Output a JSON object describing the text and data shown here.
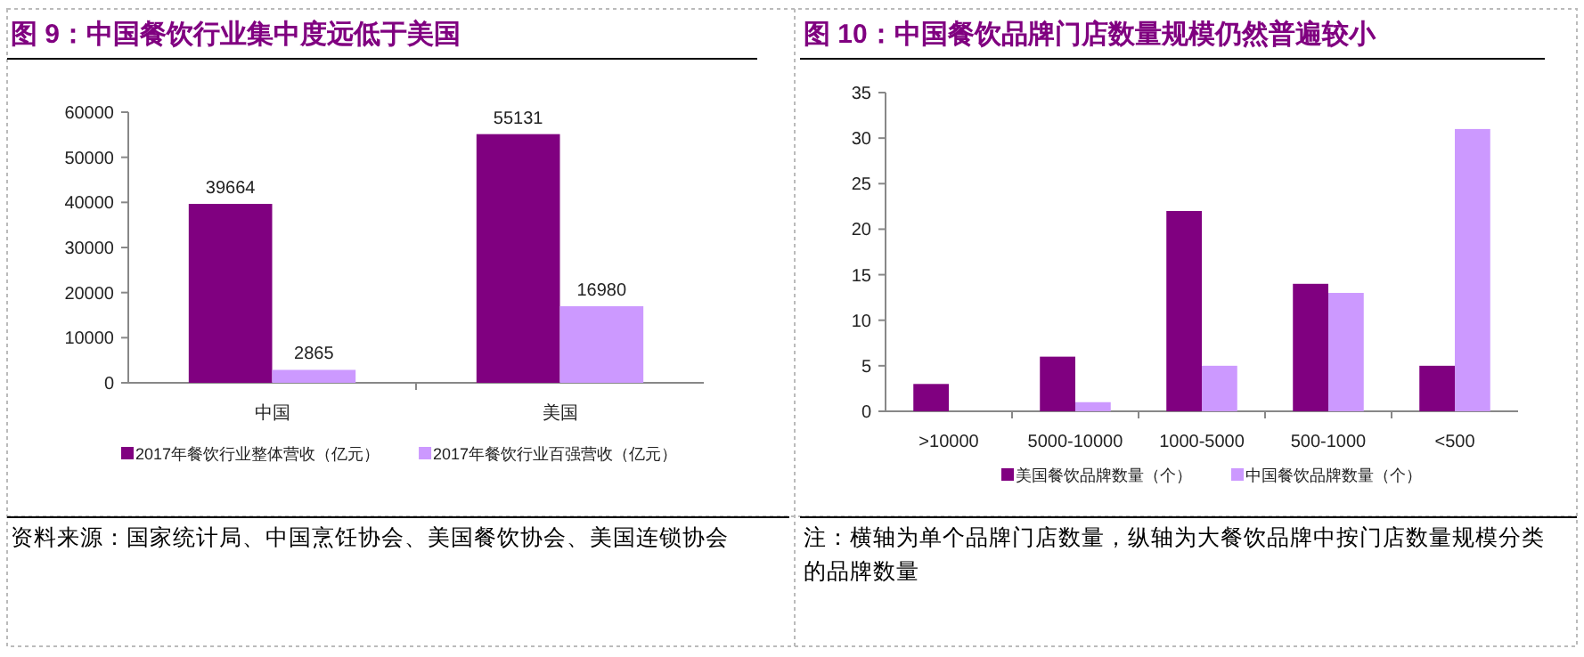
{
  "chart_data": [
    {
      "type": "bar",
      "title": "图 9：中国餐饮行业集中度远低于美国",
      "categories": [
        "中国",
        "美国"
      ],
      "series": [
        {
          "name": "2017年餐饮行业整体营收（亿元）",
          "color": "#800080",
          "values": [
            39664,
            55131
          ]
        },
        {
          "name": "2017年餐饮行业百强营收（亿元）",
          "color": "#cc99ff",
          "values": [
            2865,
            16980
          ]
        }
      ],
      "ylim": [
        0,
        60000
      ],
      "yticks": [
        0,
        10000,
        20000,
        30000,
        40000,
        50000,
        60000
      ],
      "data_labels": true,
      "legend": "bottom",
      "annotations": [
        "资料来源：国家统计局、中国烹饪协会、美国餐饮协会、美国连锁协会"
      ]
    },
    {
      "type": "bar",
      "title": "图 10：中国餐饮品牌门店数量规模仍然普遍较小",
      "categories": [
        ">10000",
        "5000-10000",
        "1000-5000",
        "500-1000",
        "<500"
      ],
      "series": [
        {
          "name": "美国餐饮品牌数量（个）",
          "color": "#800080",
          "values": [
            3,
            6,
            22,
            14,
            5
          ]
        },
        {
          "name": "中国餐饮品牌数量（个）",
          "color": "#cc99ff",
          "values": [
            0,
            1,
            5,
            13,
            31
          ]
        }
      ],
      "ylim": [
        0,
        35
      ],
      "yticks": [
        0,
        5,
        10,
        15,
        20,
        25,
        30,
        35
      ],
      "legend": "bottom",
      "annotations": [
        "注：横轴为单个品牌门店数量，纵轴为大餐饮品牌中按门店数量规模分类的品牌数量"
      ]
    }
  ]
}
